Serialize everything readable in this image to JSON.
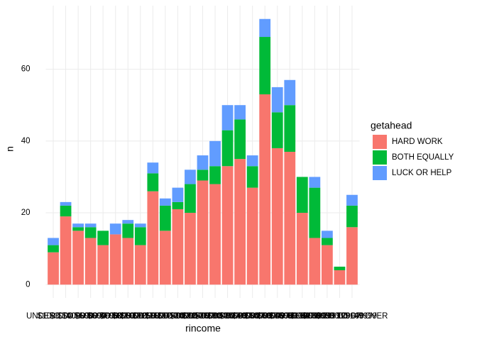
{
  "chart_data": {
    "type": "stacked_bar",
    "x_label": "rincome",
    "y_label": "n",
    "legend_title": "getahead",
    "categories": [
      "UNDER $1000",
      "$1000 TO 2999",
      "$3000 TO 3999",
      "$4000 TO 4999",
      "$5000 TO 5999",
      "$6000 TO 6999",
      "$7000 TO 7999",
      "$8000 TO 9999",
      "$10000 TO 12499",
      "$12500 TO 14999",
      "$15000 TO 17499",
      "$17500 TO 19999",
      "$20000 TO 22499",
      "$22500 TO 24999",
      "$25000 TO 29999",
      "$30000 TO 34999",
      "$35000 TO 39999",
      "$40000 TO 49999",
      "$50000 TO 59999",
      "$60000 TO 74999",
      "$75000 TO 89999",
      "$90000 TO 109999",
      "$110000 TO 129999",
      "$130000 TO 149999",
      "$150000 OR OVER"
    ],
    "series": [
      {
        "name": "HARD WORK",
        "color": "#F8766D",
        "values": [
          9,
          19,
          15,
          13,
          11,
          14,
          13,
          11,
          26,
          15,
          21,
          20,
          29,
          28,
          33,
          35,
          27,
          53,
          38,
          37,
          20,
          13,
          11,
          4,
          16
        ]
      },
      {
        "name": "BOTH EQUALLY",
        "color": "#00BA38",
        "values": [
          2,
          3,
          1,
          3,
          4,
          0,
          4,
          5,
          5,
          7,
          2,
          8,
          3,
          5,
          10,
          11,
          6,
          16,
          10,
          13,
          10,
          14,
          2,
          1,
          6
        ]
      },
      {
        "name": "LUCK OR HELP",
        "color": "#619CFF",
        "values": [
          2,
          1,
          1,
          1,
          0,
          3,
          1,
          1,
          3,
          2,
          4,
          4,
          4,
          7,
          7,
          4,
          3,
          5,
          7,
          7,
          0,
          3,
          2,
          0,
          3
        ]
      }
    ],
    "ylim": [
      -3.7,
      77.7
    ],
    "yticks": [
      0,
      20,
      40,
      60
    ],
    "grid": true
  }
}
